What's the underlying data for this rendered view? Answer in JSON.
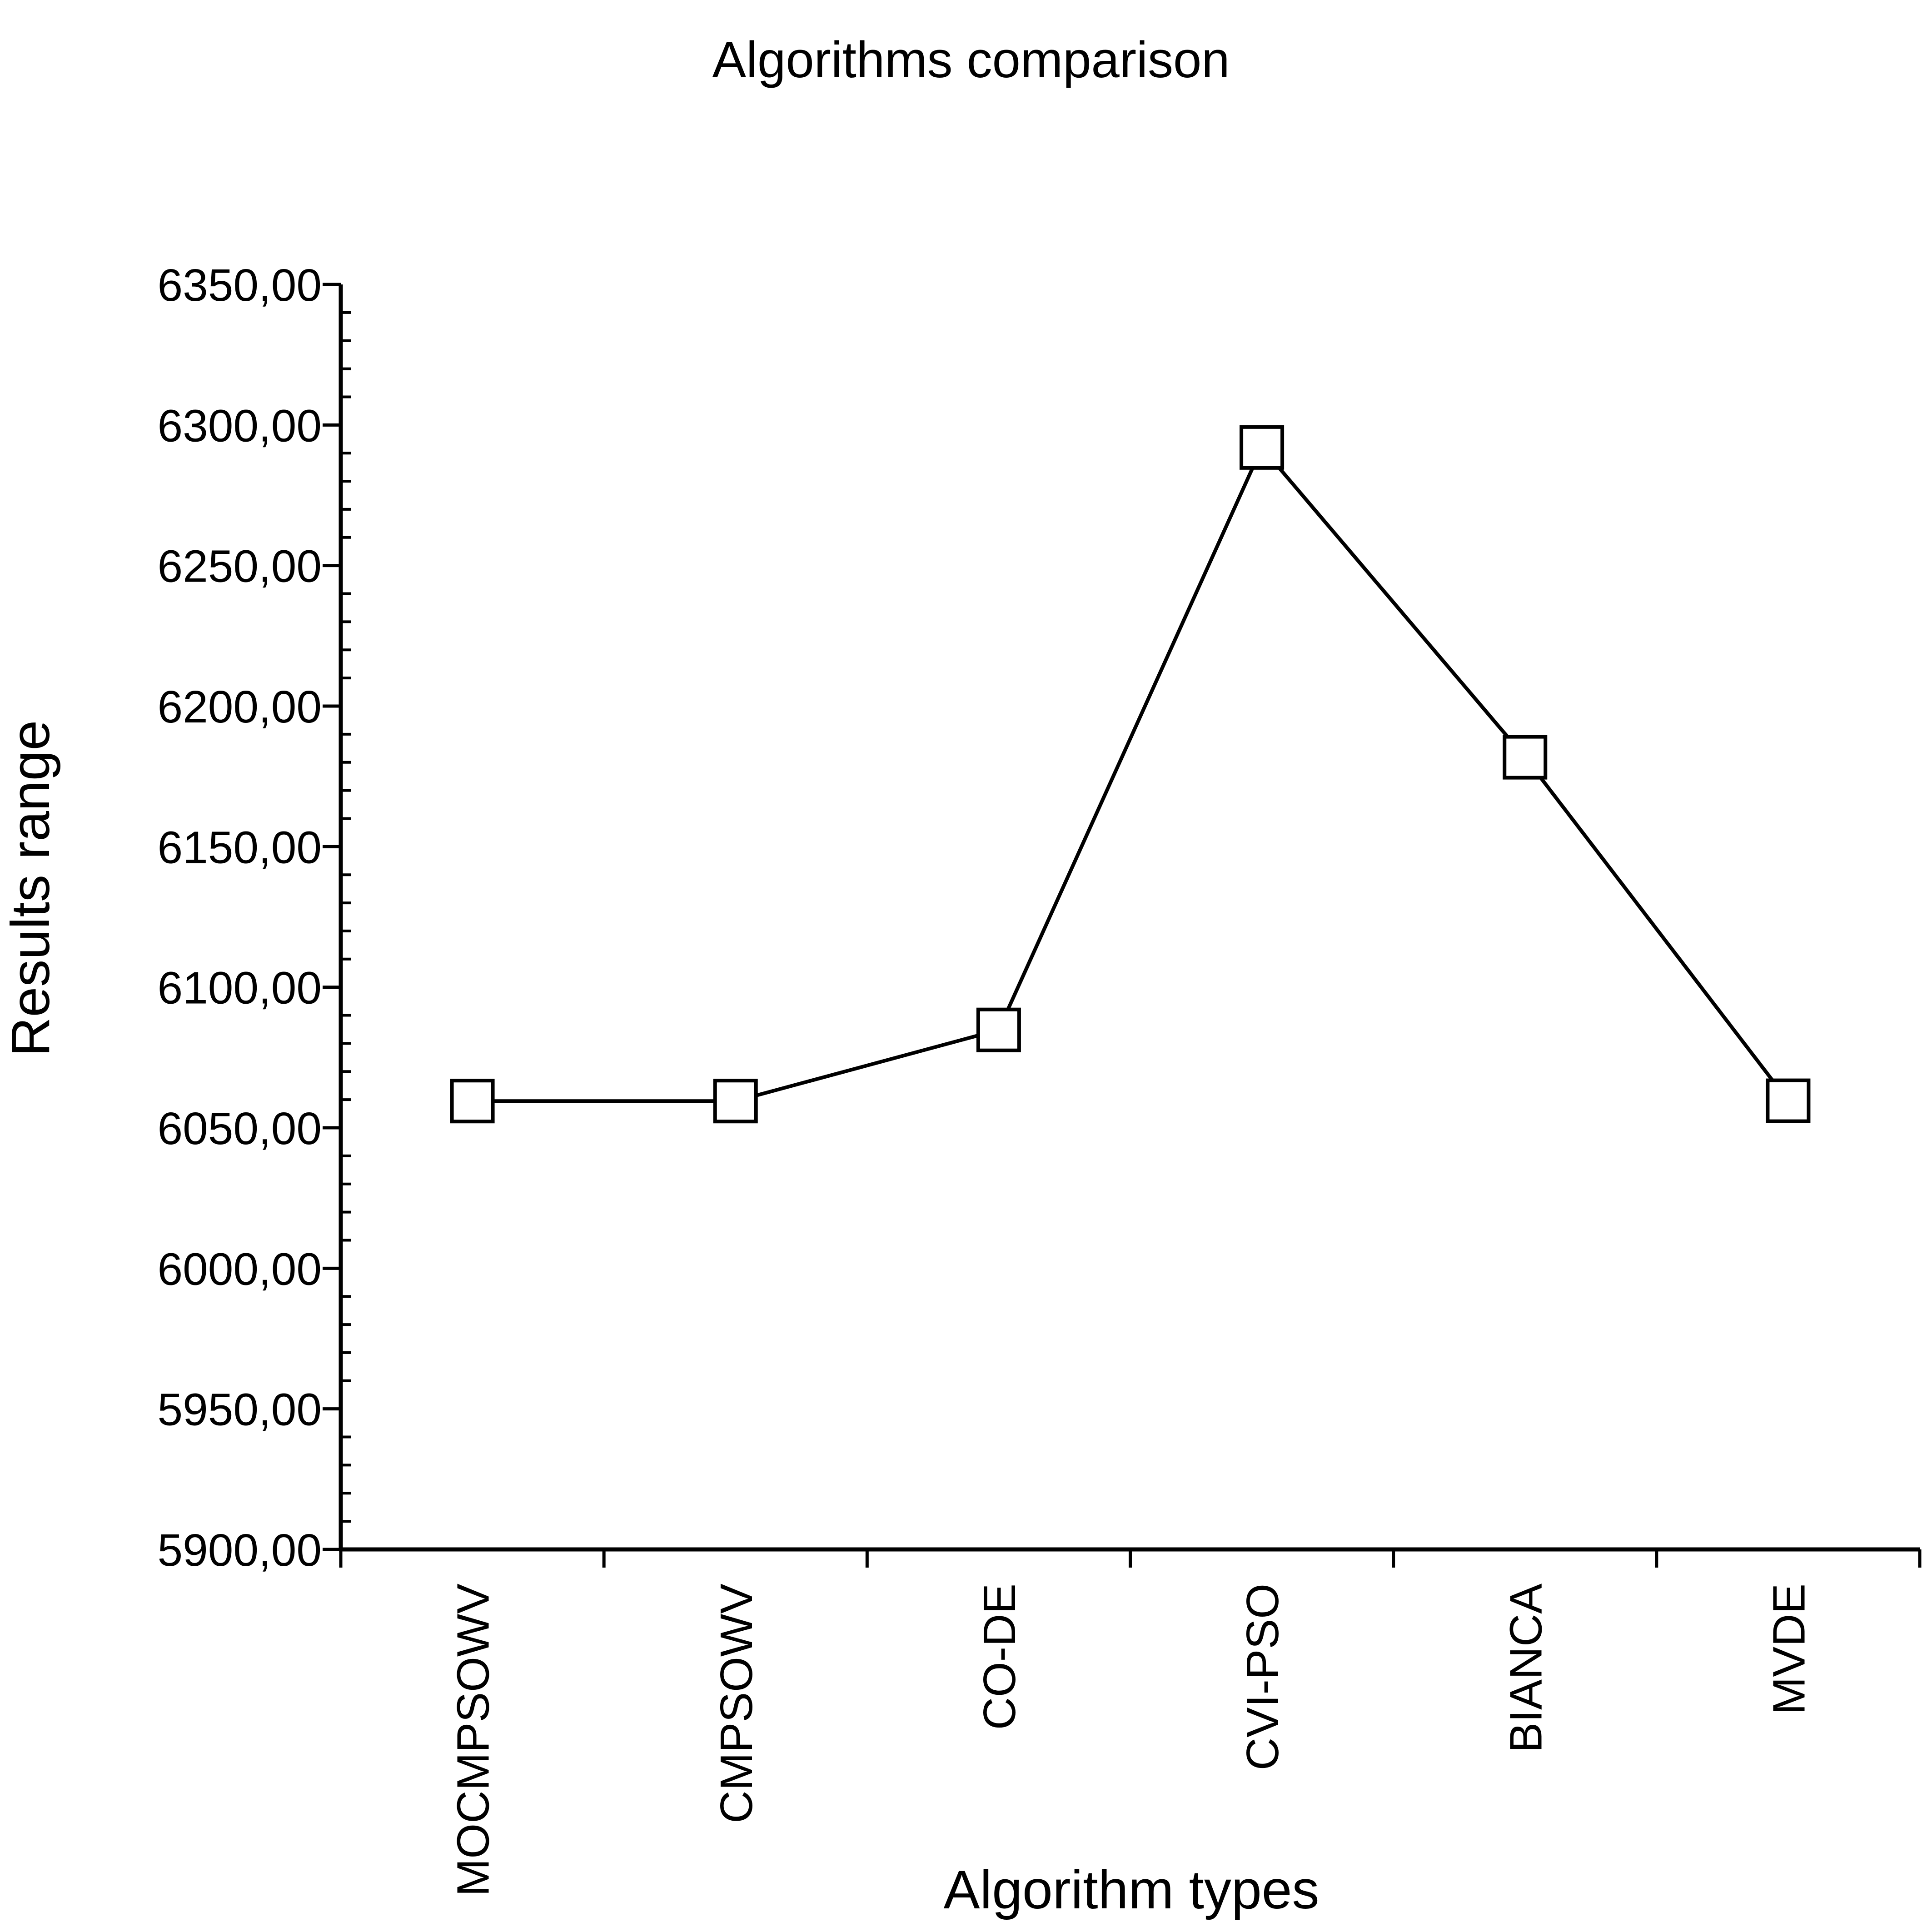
{
  "chart_data": {
    "type": "line",
    "title": "Algorithms comparison",
    "xlabel": "Algorithm types",
    "ylabel": "Results range",
    "categories": [
      "MOCMPSOWV",
      "CMPSOWV",
      "CO-DE",
      "CVI-PSO",
      "BIANCA",
      "MVDE"
    ],
    "series": [
      {
        "values": [
          6059.5,
          6059.5,
          6084.8,
          6292.0,
          6181.8,
          6059.6
        ]
      }
    ],
    "ylim": [
      5900,
      6350
    ],
    "yticks": [
      "5900,00",
      "5950,00",
      "6000,00",
      "6050,00",
      "6100,00",
      "6150,00",
      "6200,00",
      "6250,00",
      "6300,00",
      "6350,00"
    ],
    "ytick_values": [
      5900,
      5950,
      6000,
      6050,
      6100,
      6150,
      6200,
      6250,
      6300,
      6350
    ],
    "minor_ticks_per_major": 5,
    "marker": "square-open",
    "line_color": "#000000",
    "grid": false,
    "legend": "none"
  }
}
